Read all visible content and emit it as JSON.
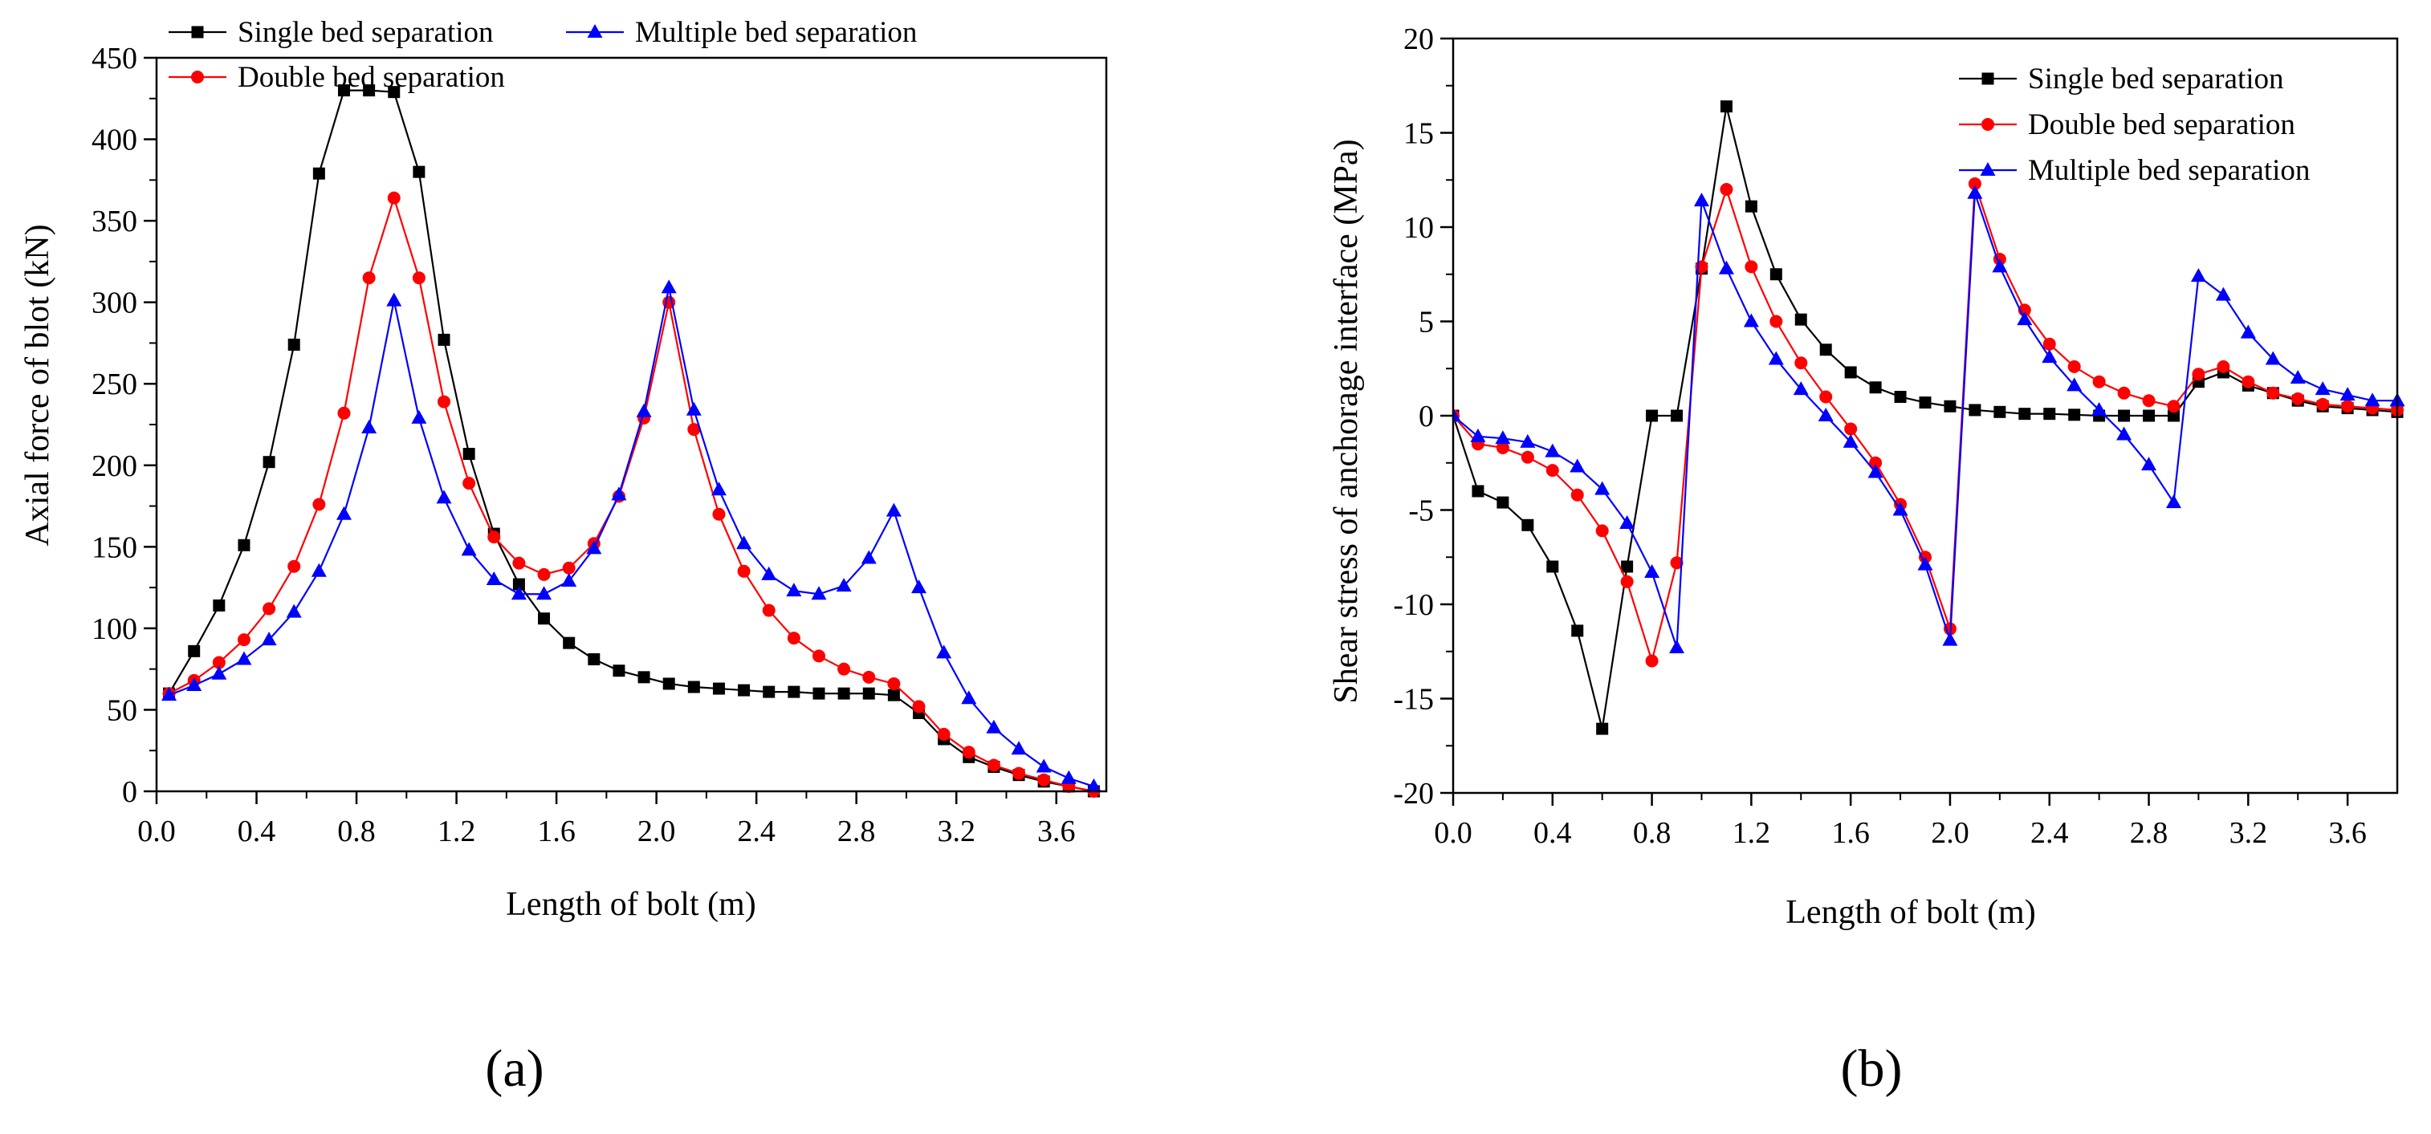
{
  "chart_data": [
    {
      "id": "a",
      "type": "line",
      "panel_label": "(a)",
      "title": "",
      "xlabel": "Length of bolt (m)",
      "ylabel": "Axial force of blot (kN)",
      "xlim": [
        0,
        3.8
      ],
      "ylim": [
        0,
        450
      ],
      "xticks": [
        "0.0",
        "0.4",
        "0.8",
        "1.2",
        "1.6",
        "2.0",
        "2.4",
        "2.8",
        "3.2",
        "3.6"
      ],
      "xtick_values": [
        0,
        0.4,
        0.8,
        1.2,
        1.6,
        2.0,
        2.4,
        2.8,
        3.2,
        3.6
      ],
      "yticks": [
        "0",
        "50",
        "100",
        "150",
        "200",
        "250",
        "300",
        "350",
        "400",
        "450"
      ],
      "ytick_values": [
        0,
        50,
        100,
        150,
        200,
        250,
        300,
        350,
        400,
        450
      ],
      "legend_position": "top",
      "series": [
        {
          "name": "Single bed separation",
          "color": "#000000",
          "marker": "square",
          "x": [
            0.05,
            0.15,
            0.25,
            0.35,
            0.45,
            0.55,
            0.65,
            0.75,
            0.85,
            0.95,
            1.05,
            1.15,
            1.25,
            1.35,
            1.45,
            1.55,
            1.65,
            1.75,
            1.85,
            1.95,
            2.05,
            2.15,
            2.25,
            2.35,
            2.45,
            2.55,
            2.65,
            2.75,
            2.85,
            2.95,
            3.05,
            3.15,
            3.25,
            3.35,
            3.45,
            3.55,
            3.65,
            3.75
          ],
          "y": [
            60,
            86,
            114,
            151,
            202,
            274,
            379,
            430,
            430,
            429,
            380,
            277,
            207,
            158,
            127,
            106,
            91,
            81,
            74,
            70,
            66,
            64,
            63,
            62,
            61,
            61,
            60,
            60,
            60,
            59,
            48,
            32,
            21,
            15,
            10,
            6,
            3,
            0
          ]
        },
        {
          "name": "Double bed separation",
          "color": "#ff0000",
          "marker": "circle",
          "x": [
            0.05,
            0.15,
            0.25,
            0.35,
            0.45,
            0.55,
            0.65,
            0.75,
            0.85,
            0.95,
            1.05,
            1.15,
            1.25,
            1.35,
            1.45,
            1.55,
            1.65,
            1.75,
            1.85,
            1.95,
            2.05,
            2.15,
            2.25,
            2.35,
            2.45,
            2.55,
            2.65,
            2.75,
            2.85,
            2.95,
            3.05,
            3.15,
            3.25,
            3.35,
            3.45,
            3.55,
            3.65,
            3.75
          ],
          "y": [
            60,
            68,
            79,
            93,
            112,
            138,
            176,
            232,
            315,
            364,
            315,
            239,
            189,
            156,
            140,
            133,
            137,
            152,
            181,
            229,
            300,
            222,
            170,
            135,
            111,
            94,
            83,
            75,
            70,
            66,
            52,
            35,
            24,
            16,
            11,
            7,
            3,
            0
          ]
        },
        {
          "name": "Multiple bed separation",
          "color": "#0000ff",
          "marker": "triangle",
          "x": [
            0.05,
            0.15,
            0.25,
            0.35,
            0.45,
            0.55,
            0.65,
            0.75,
            0.85,
            0.95,
            1.05,
            1.15,
            1.25,
            1.35,
            1.45,
            1.55,
            1.65,
            1.75,
            1.85,
            1.95,
            2.05,
            2.15,
            2.25,
            2.35,
            2.45,
            2.55,
            2.65,
            2.75,
            2.85,
            2.95,
            3.05,
            3.15,
            3.25,
            3.35,
            3.45,
            3.55,
            3.65,
            3.75
          ],
          "y": [
            59,
            65,
            72,
            81,
            93,
            110,
            135,
            170,
            223,
            301,
            229,
            180,
            148,
            130,
            121,
            121,
            129,
            149,
            182,
            233,
            309,
            234,
            185,
            152,
            133,
            123,
            121,
            126,
            143,
            172,
            125,
            85,
            57,
            39,
            26,
            15,
            8,
            3
          ]
        }
      ]
    },
    {
      "id": "b",
      "type": "line",
      "panel_label": "(b)",
      "title": "",
      "xlabel": "Length of bolt (m)",
      "ylabel": "Shear stress of anchorage interface (MPa)",
      "xlim": [
        0,
        3.8
      ],
      "ylim": [
        -20,
        20
      ],
      "xticks": [
        "0.0",
        "0.4",
        "0.8",
        "1.2",
        "1.6",
        "2.0",
        "2.4",
        "2.8",
        "3.2",
        "3.6"
      ],
      "xtick_values": [
        0,
        0.4,
        0.8,
        1.2,
        1.6,
        2.0,
        2.4,
        2.8,
        3.2,
        3.6
      ],
      "yticks": [
        "-20",
        "-15",
        "-10",
        "-5",
        "0",
        "5",
        "10",
        "15",
        "20"
      ],
      "ytick_values": [
        -20,
        -15,
        -10,
        -5,
        0,
        5,
        10,
        15,
        20
      ],
      "legend_position": "top-right",
      "series": [
        {
          "name": "Single bed separation",
          "color": "#000000",
          "marker": "square",
          "x": [
            0.0,
            0.1,
            0.2,
            0.3,
            0.4,
            0.5,
            0.6,
            0.7,
            0.8,
            0.9,
            1.0,
            1.1,
            1.2,
            1.3,
            1.4,
            1.5,
            1.6,
            1.7,
            1.8,
            1.9,
            2.0,
            2.1,
            2.2,
            2.3,
            2.4,
            2.5,
            2.6,
            2.7,
            2.8,
            2.9,
            3.0,
            3.1,
            3.2,
            3.3,
            3.4,
            3.5,
            3.6,
            3.7,
            3.8
          ],
          "y": [
            0,
            -4.0,
            -4.6,
            -5.8,
            -8.0,
            -11.4,
            -16.6,
            -8.0,
            0.0,
            0.0,
            7.8,
            16.4,
            11.1,
            7.5,
            5.1,
            3.5,
            2.3,
            1.5,
            1.0,
            0.7,
            0.5,
            0.3,
            0.2,
            0.1,
            0.1,
            0.05,
            0.0,
            0.0,
            0.0,
            0.0,
            1.8,
            2.3,
            1.6,
            1.2,
            0.8,
            0.5,
            0.4,
            0.3,
            0.2
          ]
        },
        {
          "name": "Double bed separation",
          "color": "#ff0000",
          "marker": "circle",
          "x": [
            0.0,
            0.1,
            0.2,
            0.3,
            0.4,
            0.5,
            0.6,
            0.7,
            0.8,
            0.9,
            1.0,
            1.1,
            1.2,
            1.3,
            1.4,
            1.5,
            1.6,
            1.7,
            1.8,
            1.9,
            2.0,
            2.1,
            2.2,
            2.3,
            2.4,
            2.5,
            2.6,
            2.7,
            2.8,
            2.9,
            3.0,
            3.1,
            3.2,
            3.3,
            3.4,
            3.5,
            3.6,
            3.7,
            3.8
          ],
          "y": [
            0,
            -1.5,
            -1.7,
            -2.2,
            -2.9,
            -4.2,
            -6.1,
            -8.8,
            -13.0,
            -7.8,
            7.9,
            12.0,
            7.9,
            5.0,
            2.8,
            1.0,
            -0.7,
            -2.5,
            -4.7,
            -7.5,
            -11.3,
            12.3,
            8.3,
            5.6,
            3.8,
            2.6,
            1.8,
            1.2,
            0.8,
            0.5,
            2.2,
            2.6,
            1.8,
            1.2,
            0.9,
            0.6,
            0.5,
            0.4,
            0.3
          ]
        },
        {
          "name": "Multiple bed separation",
          "color": "#0000ff",
          "marker": "triangle",
          "x": [
            0.0,
            0.1,
            0.2,
            0.3,
            0.4,
            0.5,
            0.6,
            0.7,
            0.8,
            0.9,
            1.0,
            1.1,
            1.2,
            1.3,
            1.4,
            1.5,
            1.6,
            1.7,
            1.8,
            1.9,
            2.0,
            2.1,
            2.2,
            2.3,
            2.4,
            2.5,
            2.6,
            2.7,
            2.8,
            2.9,
            3.0,
            3.1,
            3.2,
            3.3,
            3.4,
            3.5,
            3.6,
            3.7,
            3.8
          ],
          "y": [
            0,
            -1.1,
            -1.2,
            -1.4,
            -1.9,
            -2.7,
            -3.9,
            -5.7,
            -8.3,
            -12.3,
            11.4,
            7.8,
            5.0,
            3.0,
            1.4,
            0.0,
            -1.4,
            -3.0,
            -5.0,
            -7.9,
            -11.9,
            11.8,
            7.9,
            5.1,
            3.1,
            1.6,
            0.3,
            -1.0,
            -2.6,
            -4.6,
            7.4,
            6.4,
            4.4,
            3.0,
            2.0,
            1.4,
            1.1,
            0.8,
            0.8
          ]
        }
      ]
    }
  ]
}
